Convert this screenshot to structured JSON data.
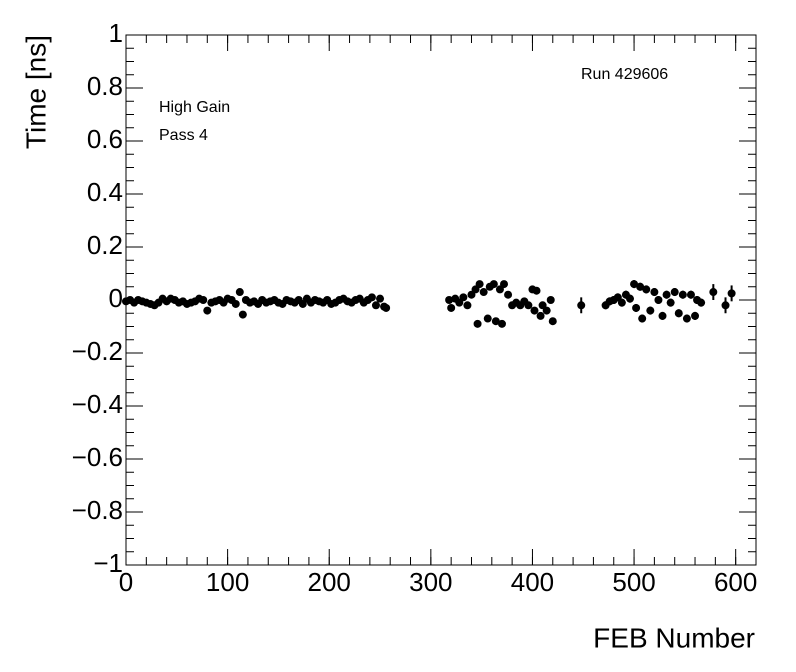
{
  "chart_data": {
    "type": "scatter",
    "xlabel": "FEB Number",
    "ylabel": "Time [ns]",
    "annotations": [
      "Run 429606",
      "High Gain",
      "Pass 4"
    ],
    "color": "#000000",
    "xlim": [
      0,
      620
    ],
    "ylim": [
      -1,
      1
    ],
    "xticks": [
      0,
      100,
      200,
      300,
      400,
      500,
      600
    ],
    "yticks": [
      {
        "value": -1,
        "label": "−1"
      },
      {
        "value": -0.8,
        "label": "−0.8"
      },
      {
        "value": -0.6,
        "label": "−0.6"
      },
      {
        "value": -0.4,
        "label": "−0.4"
      },
      {
        "value": -0.2,
        "label": "−0.2"
      },
      0,
      0.2,
      0.4,
      0.6,
      0.8,
      1
    ],
    "x": [
      0,
      4,
      8,
      12,
      16,
      20,
      24,
      28,
      32,
      36,
      40,
      44,
      48,
      52,
      56,
      60,
      64,
      68,
      72,
      76,
      80,
      84,
      88,
      92,
      96,
      100,
      104,
      108,
      112,
      115,
      118,
      122,
      126,
      130,
      134,
      138,
      142,
      146,
      150,
      154,
      158,
      162,
      166,
      170,
      174,
      178,
      182,
      186,
      190,
      194,
      198,
      202,
      206,
      210,
      214,
      218,
      222,
      226,
      230,
      234,
      238,
      242,
      246,
      250,
      254,
      256,
      318,
      320,
      324,
      328,
      332,
      336,
      340,
      344,
      346,
      348,
      352,
      356,
      358,
      362,
      364,
      368,
      370,
      372,
      376,
      380,
      384,
      388,
      392,
      396,
      400,
      402,
      404,
      408,
      410,
      414,
      418,
      420,
      448,
      472,
      476,
      480,
      484,
      488,
      492,
      496,
      500,
      502,
      506,
      508,
      512,
      516,
      520,
      524,
      528,
      532,
      536,
      540,
      544,
      548,
      552,
      556,
      560,
      562,
      566,
      578,
      590,
      596
    ],
    "values": [
      -0.005,
      0.0,
      -0.01,
      0.0,
      -0.005,
      -0.01,
      -0.015,
      -0.02,
      -0.01,
      0.005,
      -0.005,
      0.005,
      0.0,
      -0.01,
      -0.005,
      -0.015,
      -0.01,
      -0.005,
      0.005,
      0.0,
      -0.04,
      -0.01,
      -0.005,
      0.0,
      -0.01,
      0.005,
      0.0,
      -0.015,
      0.03,
      -0.055,
      0.0,
      -0.01,
      -0.005,
      -0.015,
      0.0,
      -0.01,
      -0.005,
      0.0,
      -0.01,
      -0.015,
      0.0,
      -0.005,
      -0.01,
      0.0,
      -0.015,
      0.005,
      -0.01,
      0.0,
      -0.005,
      -0.01,
      0.0,
      -0.015,
      -0.01,
      0.0,
      0.005,
      -0.005,
      -0.01,
      0.0,
      0.005,
      -0.01,
      0.0,
      0.01,
      -0.02,
      0.005,
      -0.025,
      -0.03,
      0.0,
      -0.03,
      0.005,
      -0.01,
      0.01,
      -0.02,
      0.02,
      0.04,
      -0.09,
      0.06,
      0.03,
      -0.07,
      0.05,
      0.06,
      -0.08,
      0.04,
      -0.09,
      0.06,
      0.02,
      -0.02,
      -0.01,
      -0.02,
      -0.005,
      -0.02,
      0.04,
      -0.04,
      0.035,
      -0.06,
      -0.02,
      -0.04,
      0.0,
      -0.08,
      -0.02,
      -0.02,
      -0.005,
      0.0,
      0.01,
      -0.01,
      0.02,
      0.005,
      0.06,
      -0.03,
      0.05,
      -0.07,
      0.04,
      -0.04,
      0.03,
      0.0,
      -0.06,
      0.02,
      -0.01,
      0.03,
      -0.05,
      0.02,
      -0.07,
      0.02,
      -0.06,
      0.0,
      -0.01,
      0.03,
      -0.02,
      0.025
    ],
    "errors": [
      0.005,
      0.005,
      0.005,
      0.005,
      0.005,
      0.005,
      0.005,
      0.005,
      0.005,
      0.005,
      0.005,
      0.005,
      0.005,
      0.005,
      0.005,
      0.005,
      0.005,
      0.005,
      0.005,
      0.005,
      0.005,
      0.005,
      0.005,
      0.005,
      0.005,
      0.005,
      0.005,
      0.005,
      0.005,
      0.005,
      0.005,
      0.005,
      0.005,
      0.005,
      0.005,
      0.005,
      0.005,
      0.005,
      0.005,
      0.005,
      0.005,
      0.005,
      0.005,
      0.005,
      0.005,
      0.005,
      0.005,
      0.005,
      0.005,
      0.005,
      0.005,
      0.005,
      0.005,
      0.005,
      0.005,
      0.005,
      0.005,
      0.005,
      0.005,
      0.005,
      0.005,
      0.005,
      0.005,
      0.005,
      0.005,
      0.005,
      0.012,
      0.012,
      0.012,
      0.012,
      0.012,
      0.012,
      0.012,
      0.012,
      0.012,
      0.012,
      0.012,
      0.012,
      0.012,
      0.012,
      0.012,
      0.012,
      0.012,
      0.012,
      0.012,
      0.012,
      0.012,
      0.012,
      0.012,
      0.012,
      0.012,
      0.012,
      0.012,
      0.012,
      0.012,
      0.012,
      0.012,
      0.012,
      0.03,
      0.015,
      0.015,
      0.015,
      0.015,
      0.015,
      0.015,
      0.015,
      0.015,
      0.015,
      0.015,
      0.015,
      0.015,
      0.015,
      0.015,
      0.015,
      0.015,
      0.015,
      0.015,
      0.015,
      0.015,
      0.015,
      0.015,
      0.015,
      0.015,
      0.015,
      0.015,
      0.03,
      0.03,
      0.03
    ]
  }
}
